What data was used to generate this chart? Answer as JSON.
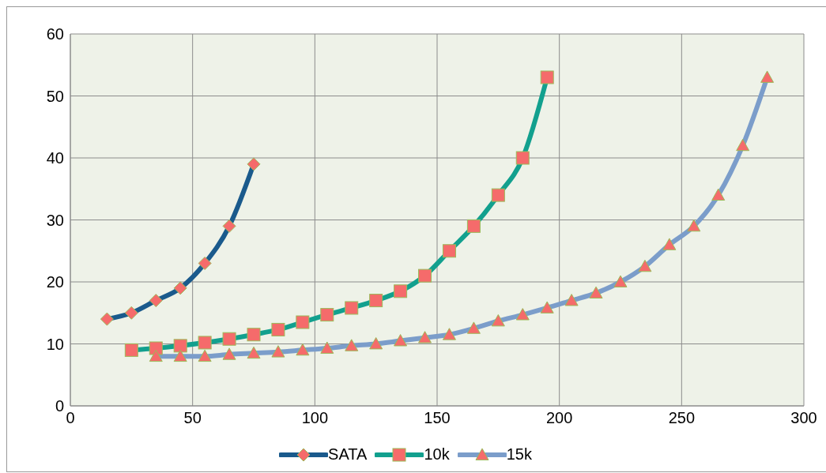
{
  "chart_data": {
    "type": "line",
    "xlim": [
      0,
      300
    ],
    "xticks": [
      0,
      50,
      100,
      150,
      200,
      250,
      300
    ],
    "ylim": [
      0,
      60
    ],
    "yticks": [
      0,
      10,
      20,
      30,
      40,
      50,
      60
    ],
    "grid": true,
    "legend": "bottom",
    "series": [
      {
        "name": "SATA",
        "color": "#1a5a8c",
        "marker": "diamond",
        "x": [
          15,
          25,
          35,
          45,
          55,
          65,
          75
        ],
        "values": [
          14,
          15,
          17,
          19,
          23,
          29,
          39
        ]
      },
      {
        "name": "10k",
        "color": "#12a08e",
        "marker": "square",
        "x": [
          25,
          35,
          45,
          55,
          65,
          75,
          85,
          95,
          105,
          115,
          125,
          135,
          145,
          155,
          165,
          175,
          185,
          195
        ],
        "values": [
          9,
          9.3,
          9.7,
          10.2,
          10.8,
          11.5,
          12.3,
          13.5,
          14.7,
          15.8,
          17,
          18.5,
          21,
          25,
          29,
          34,
          40,
          53
        ]
      },
      {
        "name": "15k",
        "color": "#7b9dca",
        "marker": "triangle",
        "x": [
          35,
          45,
          55,
          65,
          75,
          85,
          95,
          105,
          115,
          125,
          135,
          145,
          155,
          165,
          175,
          185,
          195,
          205,
          215,
          225,
          235,
          245,
          255,
          265,
          275,
          285
        ],
        "values": [
          8,
          8,
          8,
          8.3,
          8.5,
          8.7,
          9,
          9.3,
          9.7,
          10,
          10.5,
          11,
          11.5,
          12.5,
          13.7,
          14.7,
          15.8,
          17,
          18.2,
          20,
          22.5,
          26,
          29,
          34,
          42,
          53
        ]
      }
    ]
  }
}
